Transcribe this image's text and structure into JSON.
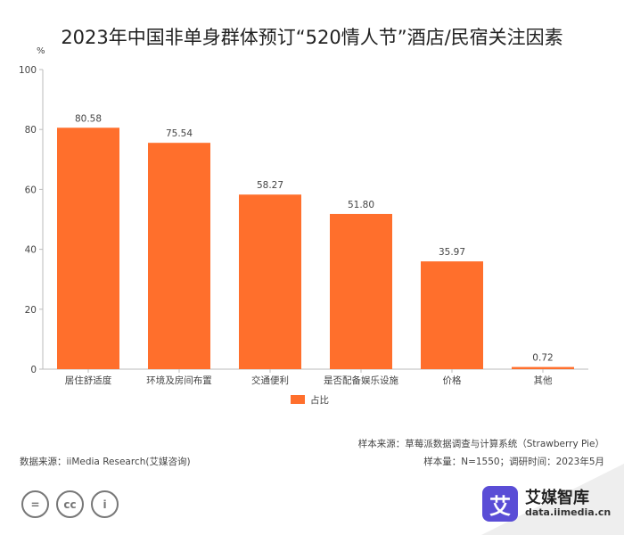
{
  "title": "2023年中国非单身群体预订“520情人节”酒店/民宿关注因素",
  "unit": "%",
  "chart_data": {
    "type": "bar",
    "categories": [
      "居住舒适度",
      "环境及房间布置",
      "交通便利",
      "是否配备娱乐设施",
      "价格",
      "其他"
    ],
    "series": [
      {
        "name": "占比",
        "values": [
          80.58,
          75.54,
          58.27,
          51.8,
          35.97,
          0.72
        ],
        "color": "#ff6f2c"
      }
    ],
    "value_labels": [
      "80.58",
      "75.54",
      "58.27",
      "51.80",
      "35.97",
      "0.72"
    ],
    "yticks": [
      "0",
      "20",
      "40",
      "60",
      "80",
      "100"
    ],
    "ylim": [
      0,
      100
    ],
    "legend": "bottom-center",
    "grid": false
  },
  "footer": {
    "source_left": "数据来源：iiMedia Research(艾媒咨询)",
    "sample_source": "样本来源：草莓派数据调查与计算系统（Strawberry Pie）",
    "sample_info": "样本量：N=1550；调研时间：2023年5月"
  },
  "license_icons": [
    "=",
    "cc",
    "i"
  ],
  "brand": {
    "badge": "艾",
    "name": "艾媒智库",
    "url": "data.iimedia.cn"
  }
}
